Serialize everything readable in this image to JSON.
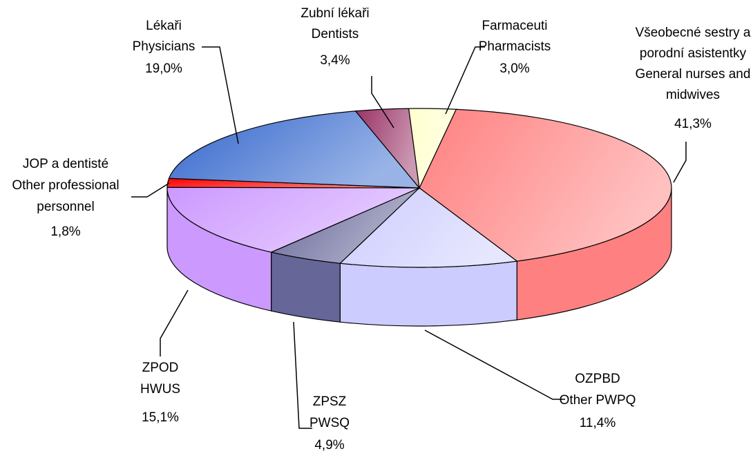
{
  "chart_data": {
    "type": "pie3d",
    "categories": [
      [
        "Všeobecné sestry a",
        "porodní asistentky",
        "General nurses and",
        "midwives"
      ],
      [
        "OZPBD",
        "Other PWPQ"
      ],
      [
        "ZPSZ",
        "PWSQ"
      ],
      [
        "ZPOD",
        "HWUS"
      ],
      [
        "JOP a dentisté",
        "Other professional",
        "personnel"
      ],
      [
        "Lékaři",
        "Physicians"
      ],
      [
        "Zubní lékaři",
        "Dentists"
      ],
      [
        "Farmaceuti",
        "Pharmacists"
      ]
    ],
    "values": [
      41.3,
      11.4,
      4.9,
      15.1,
      1.8,
      19.0,
      3.4,
      3.0
    ],
    "value_labels": [
      "41,3%",
      "11,4%",
      "4,9%",
      "15,1%",
      "1,8%",
      "19,0%",
      "3,4%",
      "3,0%"
    ],
    "colors": [
      "#ff8080",
      "#ccccff",
      "#666699",
      "#cc99ff",
      "#ff0000",
      "#3366cc",
      "#993366",
      "#ffffcc"
    ]
  }
}
